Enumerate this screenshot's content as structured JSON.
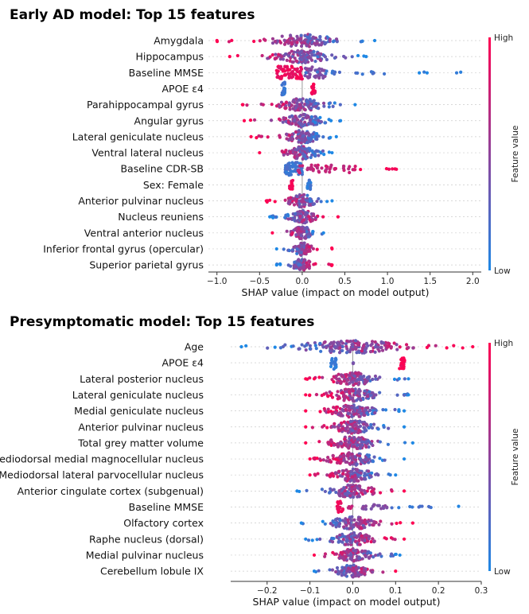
{
  "colors": {
    "low": "#1e88e5",
    "high": "#ff0051",
    "zero_line": "#999999",
    "grid": "#cccccc"
  },
  "colorbar": {
    "high_label": "High",
    "low_label": "Low",
    "title": "Feature value"
  },
  "chart_data": [
    {
      "type": "scatter",
      "subtype": "shap-beeswarm",
      "title": "Early AD model: Top 15 features",
      "xlabel": "SHAP value (impact on model output)",
      "xlim": [
        -1.1,
        2.1
      ],
      "xticks": [
        -1.0,
        -0.5,
        0.0,
        0.5,
        1.0,
        1.5,
        2.0
      ],
      "xtick_labels": [
        "−1.0",
        "−0.5",
        "0.0",
        "0.5",
        "1.0",
        "1.5",
        "2.0"
      ],
      "features": [
        {
          "name": "Amygdala",
          "kind": "cont",
          "min": -1.0,
          "max": 0.85,
          "peak": 0.0,
          "spread": 0.33,
          "dir": -1,
          "n": 120
        },
        {
          "name": "Hippocampus",
          "kind": "cont",
          "min": -0.85,
          "max": 0.75,
          "peak": 0.0,
          "spread": 0.3,
          "dir": -1,
          "n": 120
        },
        {
          "name": "Baseline MMSE",
          "kind": "clusters",
          "min": -0.3,
          "max": 2.05,
          "clusters": [
            {
              "x": -0.15,
              "w": 0.15,
              "c": 0.92,
              "h": 8,
              "n": 70
            },
            {
              "x": 0.15,
              "w": 0.12,
              "c": 0.45,
              "h": 7,
              "n": 40
            },
            {
              "x": 0.5,
              "w": 0.5,
              "c": 0.15,
              "h": 2,
              "n": 18
            },
            {
              "x": 1.6,
              "w": 0.45,
              "c": 0.05,
              "h": 1,
              "n": 5
            }
          ]
        },
        {
          "name": "APOE ε4",
          "kind": "clusters",
          "min": -0.25,
          "max": 0.15,
          "clusters": [
            {
              "x": -0.22,
              "w": 0.02,
              "c": 0.15,
              "h": 8,
              "n": 24
            },
            {
              "x": 0.13,
              "w": 0.02,
              "c": 0.95,
              "h": 7,
              "n": 20
            }
          ]
        },
        {
          "name": "Parahippocampal gyrus",
          "kind": "cont",
          "min": -0.7,
          "max": 0.62,
          "peak": 0.0,
          "spread": 0.25,
          "dir": -1,
          "n": 110
        },
        {
          "name": "Angular gyrus",
          "kind": "cont",
          "min": -0.68,
          "max": 0.45,
          "peak": 0.0,
          "spread": 0.22,
          "dir": -1,
          "n": 100
        },
        {
          "name": "Lateral geniculate nucleus",
          "kind": "cont",
          "min": -0.6,
          "max": 0.4,
          "peak": 0.0,
          "spread": 0.2,
          "dir": -1,
          "n": 100
        },
        {
          "name": "Ventral lateral nucleus",
          "kind": "cont",
          "min": -0.5,
          "max": 0.35,
          "peak": 0.0,
          "spread": 0.18,
          "dir": -1,
          "n": 95
        },
        {
          "name": "Baseline CDR-SB",
          "kind": "clusters",
          "min": -0.2,
          "max": 1.15,
          "clusters": [
            {
              "x": -0.1,
              "w": 0.1,
              "c": 0.15,
              "h": 8,
              "n": 60
            },
            {
              "x": 0.3,
              "w": 0.35,
              "c": 0.75,
              "h": 5,
              "n": 45
            },
            {
              "x": 0.85,
              "w": 0.3,
              "c": 0.95,
              "h": 1,
              "n": 6
            }
          ]
        },
        {
          "name": "Sex: Female",
          "kind": "clusters",
          "min": -0.15,
          "max": 0.1,
          "clusters": [
            {
              "x": -0.13,
              "w": 0.02,
              "c": 0.95,
              "h": 6,
              "n": 18
            },
            {
              "x": 0.08,
              "w": 0.02,
              "c": 0.1,
              "h": 6,
              "n": 18
            }
          ]
        },
        {
          "name": "Anterior pulvinar nucleus",
          "kind": "cont",
          "min": -0.42,
          "max": 0.35,
          "peak": 0.0,
          "spread": 0.15,
          "dir": -1,
          "n": 90
        },
        {
          "name": "Nucleus reuniens",
          "kind": "cont",
          "min": -0.38,
          "max": 0.42,
          "peak": 0.0,
          "spread": 0.15,
          "dir": 1,
          "n": 90
        },
        {
          "name": "Ventral anterior nucleus",
          "kind": "cont",
          "min": -0.35,
          "max": 0.25,
          "peak": 0.0,
          "spread": 0.12,
          "dir": -1,
          "n": 90
        },
        {
          "name": "Inferior frontal gyrus (opercular)",
          "kind": "cont",
          "min": -0.3,
          "max": 0.35,
          "peak": 0.0,
          "spread": 0.1,
          "dir": 1,
          "n": 85
        },
        {
          "name": "Superior parietal gyrus",
          "kind": "cont",
          "min": -0.3,
          "max": 0.35,
          "peak": 0.0,
          "spread": 0.1,
          "dir": 1,
          "n": 85
        }
      ]
    },
    {
      "type": "scatter",
      "subtype": "shap-beeswarm",
      "title": "Presymptomatic model: Top 15 features",
      "xlabel": "SHAP value (impact on model output)",
      "xlim": [
        -0.285,
        0.3
      ],
      "xticks": [
        -0.2,
        -0.1,
        0.0,
        0.1,
        0.2,
        0.3
      ],
      "xtick_labels": [
        "−0.2",
        "−0.1",
        "0.0",
        "0.1",
        "0.2",
        "0.3"
      ],
      "features": [
        {
          "name": "Age",
          "kind": "cont",
          "min": -0.26,
          "max": 0.28,
          "peak": 0.0,
          "spread": 0.12,
          "dir": 1,
          "n": 170
        },
        {
          "name": "APOE ε4",
          "kind": "clusters",
          "min": -0.05,
          "max": 0.12,
          "clusters": [
            {
              "x": -0.045,
              "w": 0.006,
              "c": 0.1,
              "h": 8,
              "n": 22
            },
            {
              "x": 0.0,
              "w": 0.002,
              "c": 0.4,
              "h": 1,
              "n": 2
            },
            {
              "x": 0.115,
              "w": 0.006,
              "c": 0.95,
              "h": 8,
              "n": 22
            }
          ]
        },
        {
          "name": "Lateral posterior nucleus",
          "kind": "cont",
          "min": -0.11,
          "max": 0.13,
          "peak": 0.0,
          "spread": 0.05,
          "dir": -1,
          "n": 120
        },
        {
          "name": "Lateral geniculate nucleus",
          "kind": "cont",
          "min": -0.11,
          "max": 0.13,
          "peak": 0.0,
          "spread": 0.05,
          "dir": -1,
          "n": 120
        },
        {
          "name": "Medial geniculate nucleus",
          "kind": "cont",
          "min": -0.11,
          "max": 0.12,
          "peak": 0.0,
          "spread": 0.05,
          "dir": -1,
          "n": 120
        },
        {
          "name": "Anterior pulvinar nucleus",
          "kind": "cont",
          "min": -0.11,
          "max": 0.12,
          "peak": 0.0,
          "spread": 0.05,
          "dir": -1,
          "n": 115
        },
        {
          "name": "Total grey matter volume",
          "kind": "cont",
          "min": -0.11,
          "max": 0.14,
          "peak": 0.0,
          "spread": 0.05,
          "dir": -1,
          "n": 115
        },
        {
          "name": "Mediodorsal medial magnocellular nucleus",
          "kind": "cont",
          "min": -0.1,
          "max": 0.12,
          "peak": 0.0,
          "spread": 0.05,
          "dir": -1,
          "n": 110
        },
        {
          "name": "Mediodorsal lateral parvocellular nucleus",
          "kind": "cont",
          "min": -0.1,
          "max": 0.1,
          "peak": 0.0,
          "spread": 0.045,
          "dir": -1,
          "n": 110
        },
        {
          "name": "Anterior cingulate cortex (subgenual)",
          "kind": "cont",
          "min": -0.13,
          "max": 0.12,
          "peak": 0.0,
          "spread": 0.05,
          "dir": 1,
          "n": 100
        },
        {
          "name": "Baseline MMSE",
          "kind": "clusters",
          "min": -0.04,
          "max": 0.25,
          "clusters": [
            {
              "x": -0.03,
              "w": 0.008,
              "c": 0.95,
              "h": 7,
              "n": 20
            },
            {
              "x": -0.005,
              "w": 0.006,
              "c": 0.75,
              "h": 2,
              "n": 6
            },
            {
              "x": 0.05,
              "w": 0.03,
              "c": 0.45,
              "h": 3,
              "n": 18
            },
            {
              "x": 0.14,
              "w": 0.05,
              "c": 0.15,
              "h": 1,
              "n": 10
            },
            {
              "x": 0.25,
              "w": 0.005,
              "c": 0.05,
              "h": 1,
              "n": 1
            }
          ]
        },
        {
          "name": "Olfactory cortex",
          "kind": "cont",
          "min": -0.12,
          "max": 0.14,
          "peak": 0.0,
          "spread": 0.05,
          "dir": 1,
          "n": 100
        },
        {
          "name": "Raphe nucleus (dorsal)",
          "kind": "cont",
          "min": -0.11,
          "max": 0.12,
          "peak": 0.0,
          "spread": 0.05,
          "dir": 1,
          "n": 100
        },
        {
          "name": "Medial pulvinar nucleus",
          "kind": "cont",
          "min": -0.09,
          "max": 0.11,
          "peak": 0.0,
          "spread": 0.04,
          "dir": -1,
          "n": 100
        },
        {
          "name": "Cerebellum lobule IX",
          "kind": "cont",
          "min": -0.09,
          "max": 0.1,
          "peak": 0.0,
          "spread": 0.04,
          "dir": 1,
          "n": 95
        }
      ]
    }
  ]
}
